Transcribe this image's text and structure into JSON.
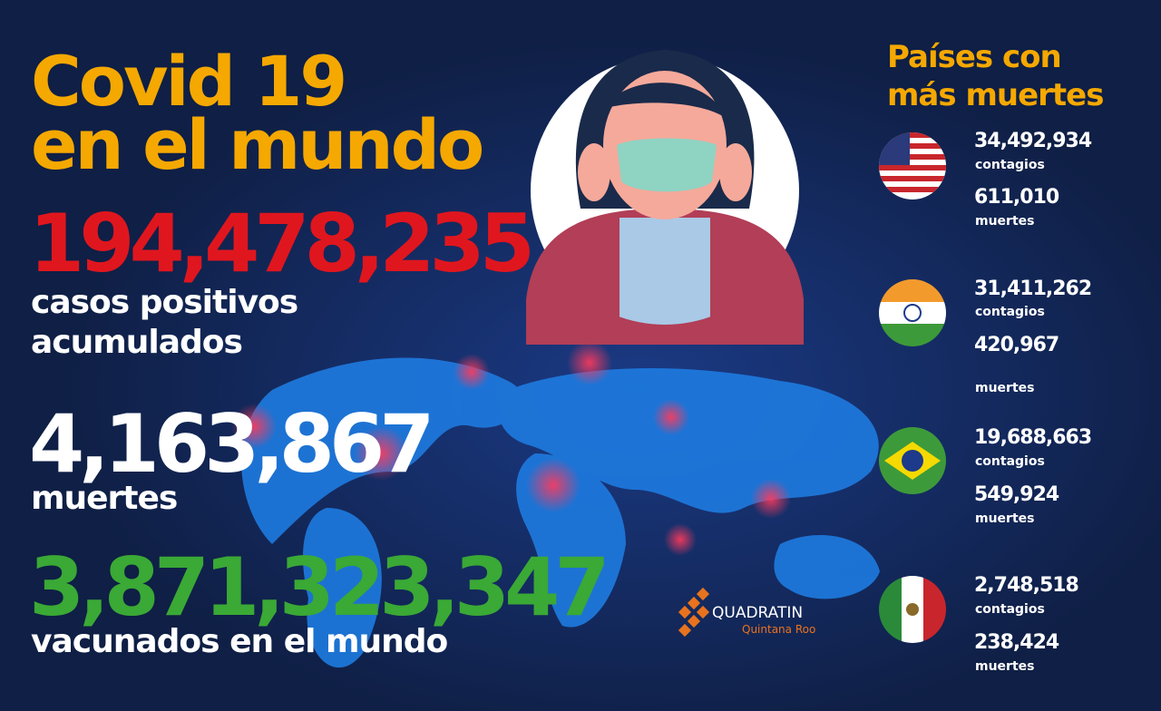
{
  "title": {
    "line1": "Covid 19",
    "line2": "en el mundo"
  },
  "stats": [
    {
      "value": "194,478,235",
      "label": [
        "casos positivos",
        "acumulados"
      ]
    },
    {
      "value": "4,163,867",
      "label": [
        "muertes"
      ]
    },
    {
      "value": "3,871,323,347",
      "label": [
        "vacunados en el mundo"
      ]
    }
  ],
  "countries_title": {
    "line1": "Países  con",
    "line2": "más muertes"
  },
  "countries": [
    {
      "cases": "34,492,934",
      "cases_label": "contagios",
      "deaths": "611,010",
      "deaths_label": "muertes"
    },
    {
      "cases": "31,411,262",
      "cases_label": "contagios",
      "deaths": "420,967",
      "deaths_label": "muertes"
    },
    {
      "cases": "19,688,663",
      "cases_label": "contagios",
      "deaths": "549,924",
      "deaths_label": "muertes"
    },
    {
      "cases": "2,748,518",
      "cases_label": "contagios",
      "deaths": "238,424",
      "deaths_label": "muertes"
    }
  ],
  "logo": {
    "name": "QUADRATIN",
    "subtitle": "Quintana Roo"
  }
}
